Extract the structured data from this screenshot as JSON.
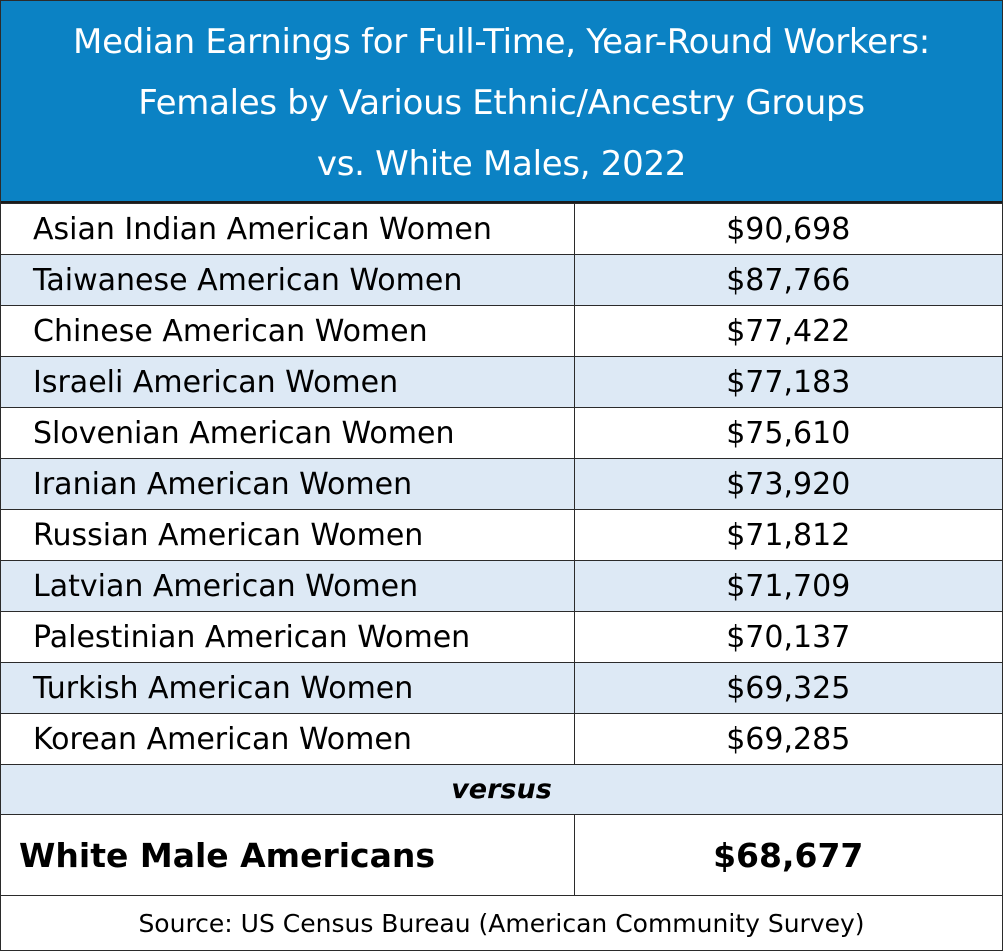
{
  "chart_data": {
    "type": "table",
    "title_lines": [
      "Median Earnings for Full-Time, Year-Round Workers:",
      "Females by Various Ethnic/Ancestry Groups",
      "vs. White Males, 2022"
    ],
    "rows": [
      {
        "group": "Asian Indian American Women",
        "earnings": "$90,698",
        "value": 90698
      },
      {
        "group": "Taiwanese American Women",
        "earnings": "$87,766",
        "value": 87766
      },
      {
        "group": "Chinese American Women",
        "earnings": "$77,422",
        "value": 77422
      },
      {
        "group": "Israeli American Women",
        "earnings": "$77,183",
        "value": 77183
      },
      {
        "group": "Slovenian American Women",
        "earnings": "$75,610",
        "value": 75610
      },
      {
        "group": "Iranian American Women",
        "earnings": "$73,920",
        "value": 73920
      },
      {
        "group": "Russian American Women",
        "earnings": "$71,812",
        "value": 71812
      },
      {
        "group": "Latvian American Women",
        "earnings": "$71,709",
        "value": 71709
      },
      {
        "group": "Palestinian American Women",
        "earnings": "$70,137",
        "value": 70137
      },
      {
        "group": "Turkish American Women",
        "earnings": "$69,325",
        "value": 69325
      },
      {
        "group": "Korean American Women",
        "earnings": "$69,285",
        "value": 69285
      }
    ],
    "separator": "versus",
    "reference": {
      "group": "White Male Americans",
      "earnings": "$68,677",
      "value": 68677
    },
    "source": "Source: US Census Bureau (American Community Survey)"
  },
  "colors": {
    "header_background": "#0b82c4",
    "header_text": "#ffffff",
    "alternate_row": "#dde9f5",
    "border": "#2b2b2b"
  }
}
